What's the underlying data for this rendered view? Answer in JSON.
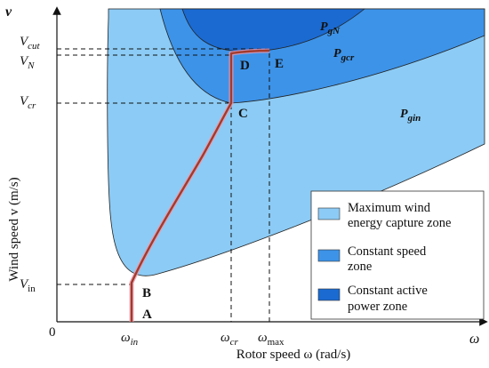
{
  "axes": {
    "y_symbol": "v",
    "y_title": "Wind speed v (m/s)",
    "x_symbol": "ω",
    "x_title": "Rotor speed ω (rad/s)",
    "origin": "0"
  },
  "y_ticks": {
    "v_cut": {
      "base": "V",
      "sub": "cut"
    },
    "v_n": {
      "base": "V",
      "sub": "N"
    },
    "v_cr": {
      "base": "V",
      "sub": "cr"
    },
    "v_in": {
      "base": "V",
      "sub": "in"
    }
  },
  "x_ticks": {
    "w_in": {
      "base": "ω",
      "sub": "in"
    },
    "w_cr": {
      "base": "ω",
      "sub": "cr"
    },
    "w_max": {
      "base": "ω",
      "sub": "max"
    }
  },
  "points": {
    "A": "A",
    "B": "B",
    "C": "C",
    "D": "D",
    "E": "E"
  },
  "curves": {
    "p_gn": {
      "base": "P",
      "sub": "gN"
    },
    "p_gcr": {
      "base": "P",
      "sub": "gcr"
    },
    "p_gin": {
      "base": "P",
      "sub": "gin"
    }
  },
  "legend": {
    "items": [
      {
        "line1": "Maximum wind",
        "line2": "energy capture zone",
        "color": "#8ccbf5"
      },
      {
        "line1": "Constant speed",
        "line2": "zone",
        "color": "#3d93e8"
      },
      {
        "line1": "Constant active",
        "line2": "power zone",
        "color": "#1a6ad2"
      }
    ]
  },
  "colors": {
    "zone_light": "#8ccbf5",
    "zone_mid": "#3d93e8",
    "zone_dark": "#1a6ad2",
    "trajectory": "#a33a2a",
    "trajectory_glow": "#e89ab0"
  }
}
